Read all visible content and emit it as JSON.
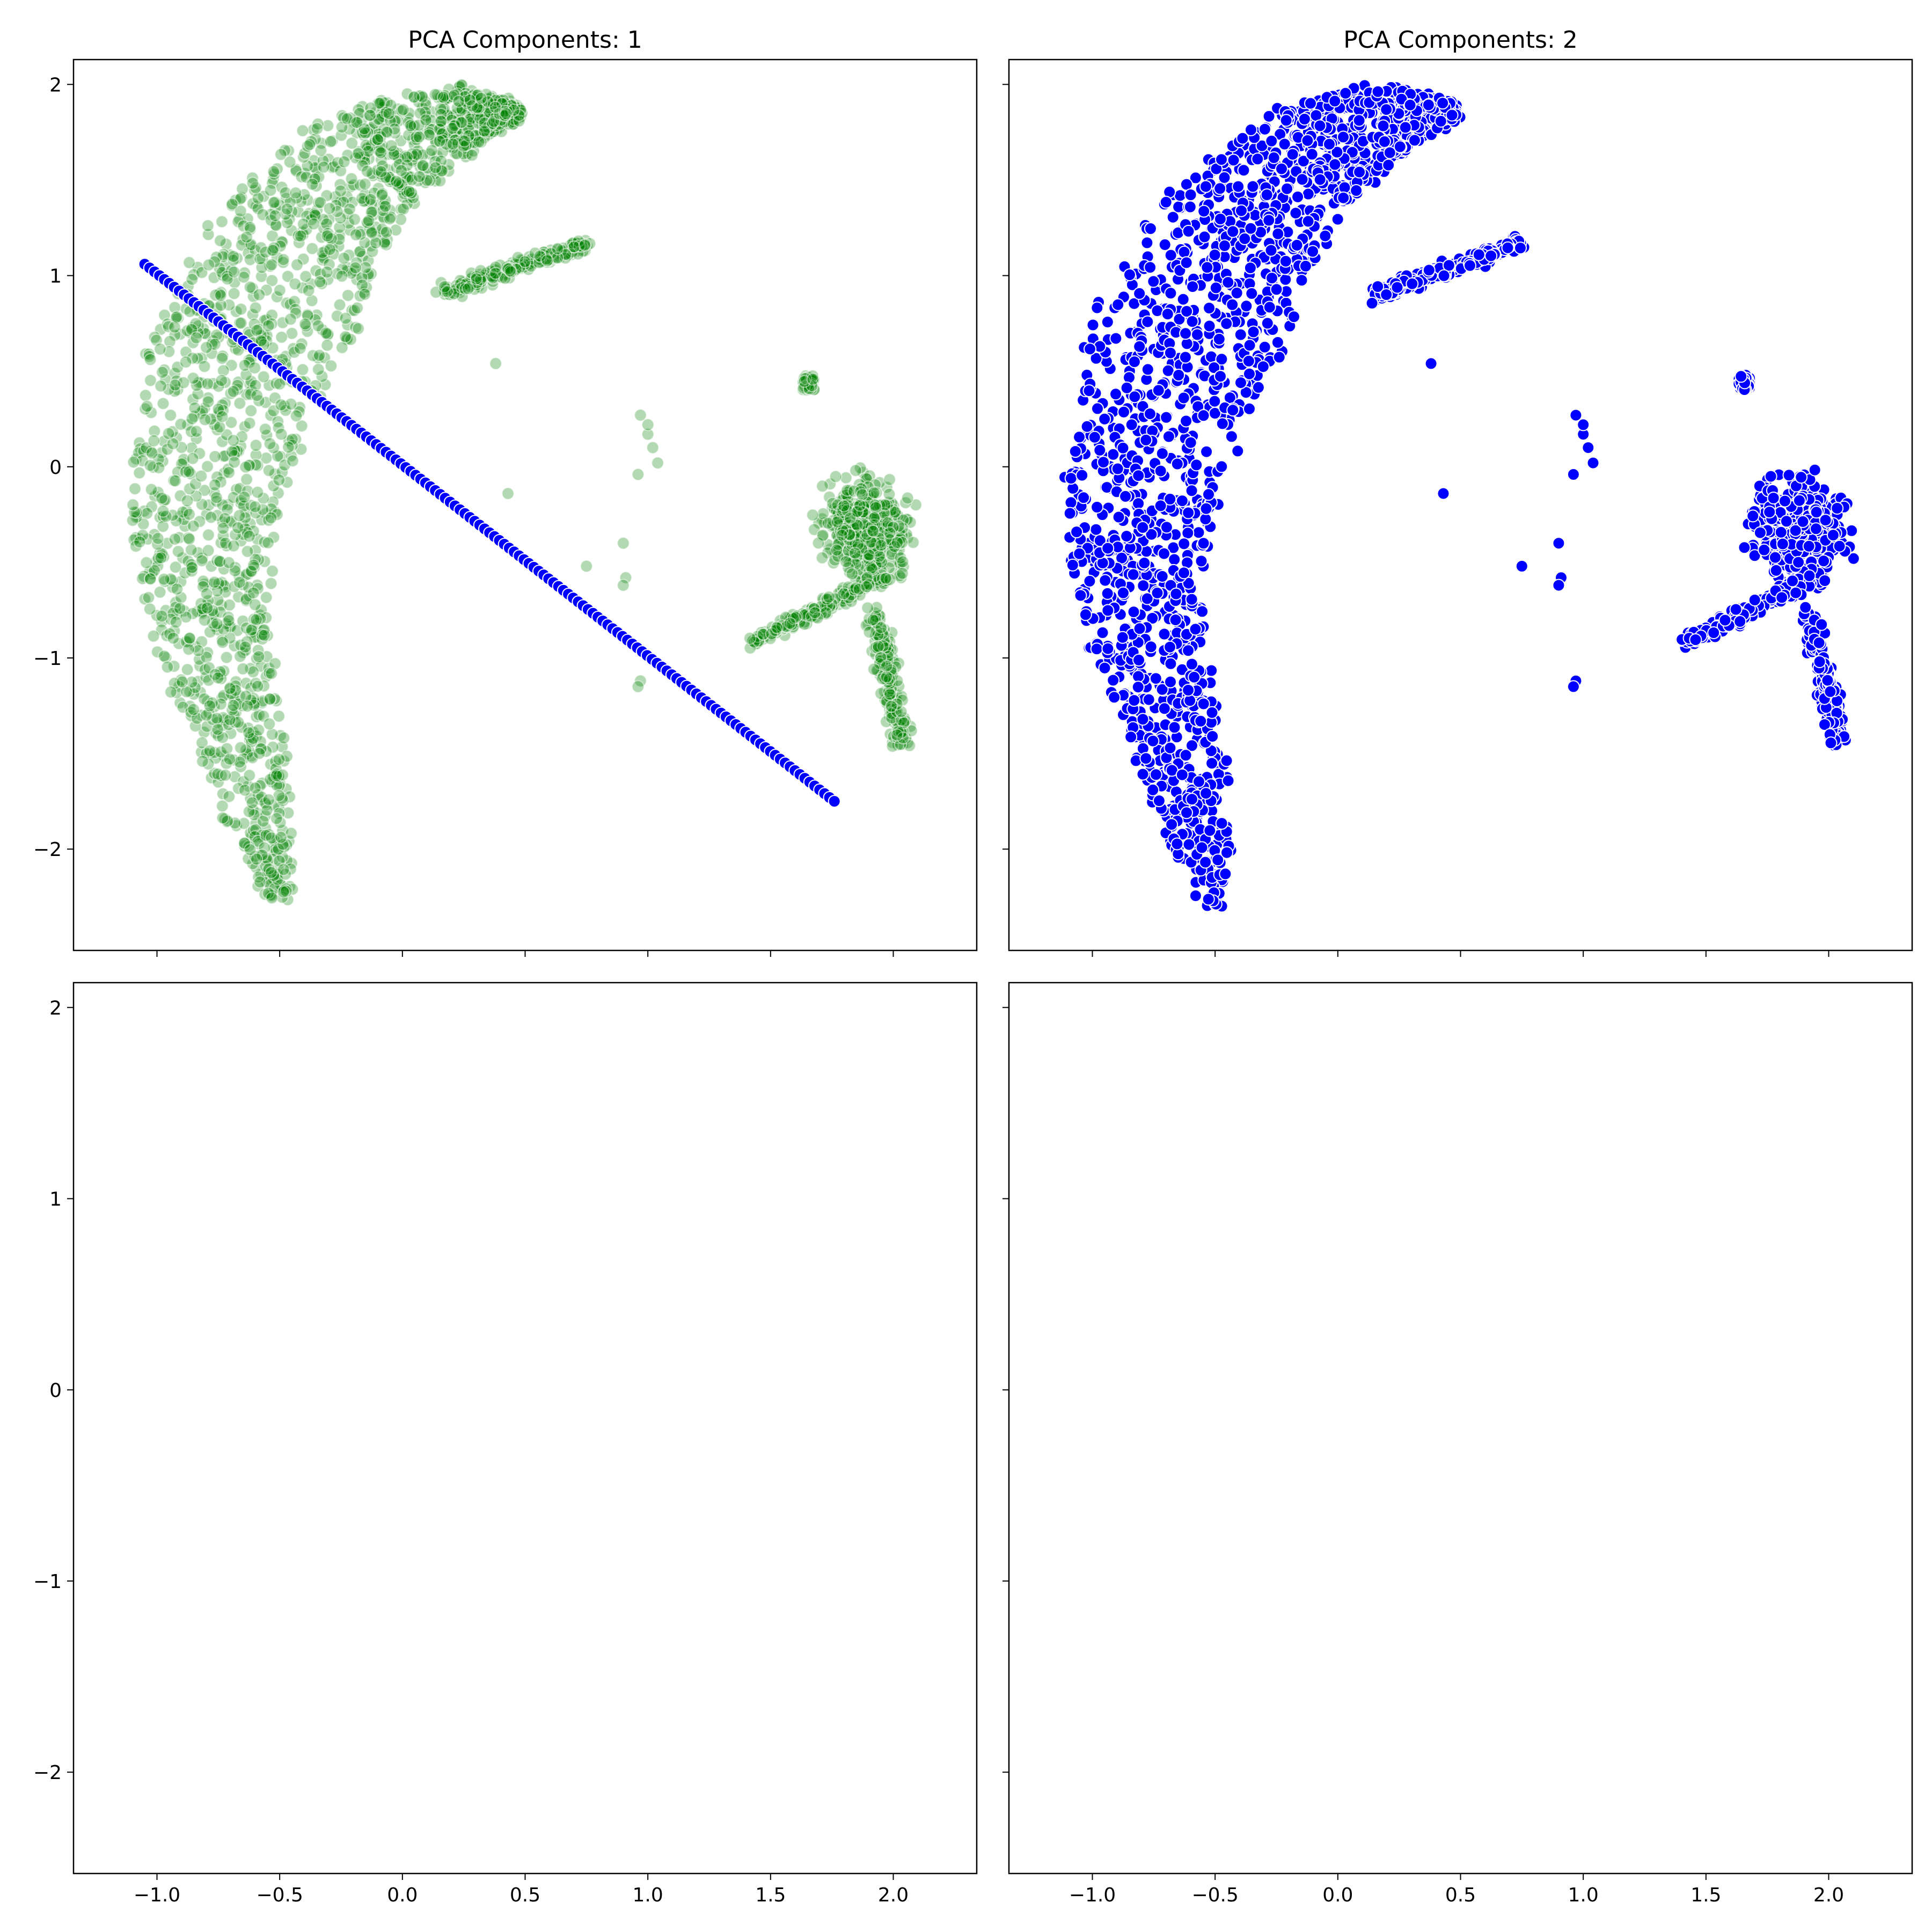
{
  "chart_data": [
    {
      "type": "scatter",
      "title": "PCA Components: 1",
      "xlim": [
        -1.34,
        2.34
      ],
      "ylim": [
        -2.53,
        2.13
      ],
      "x_ticks": [
        -1.0,
        -0.5,
        0.0,
        0.5,
        1.0,
        1.5,
        2.0
      ],
      "y_ticks": [
        -2,
        -1,
        0,
        1,
        2
      ],
      "x_tick_labels": [
        "−1.0",
        "−0.5",
        "0.0",
        "0.5",
        "1.0",
        "1.5",
        "2.0"
      ],
      "y_tick_labels": [
        "−2",
        "−1",
        "0",
        "1",
        "2"
      ],
      "show_x_tick_labels": false,
      "show_y_tick_labels": true,
      "grid": false,
      "series": [
        {
          "color": "#008000",
          "alpha": 0.3,
          "marker_edge": "#ffffff",
          "description": "original data cloud",
          "clusters": [
            {
              "shape": "crescent",
              "x_range": [
                -1.2,
                0.75
              ],
              "y_range": [
                -2.31,
                1.91
              ]
            },
            {
              "shape": "blob",
              "x_range": [
                1.4,
                2.2
              ],
              "y_range": [
                -1.48,
                0.48
              ]
            },
            {
              "shape": "sparse",
              "x_range": [
                0.4,
                1.05
              ],
              "y_range": [
                -1.16,
                0.54
              ]
            }
          ]
        },
        {
          "color": "#0000ff",
          "alpha": 1.0,
          "marker_edge": "#ffffff",
          "description": "1-component reconstruction (line)",
          "line": {
            "x_start": -1.05,
            "y_start": 1.06,
            "x_end": 1.76,
            "y_end": -1.75
          }
        }
      ]
    },
    {
      "type": "scatter",
      "title": "PCA Components: 2",
      "xlim": [
        -1.34,
        2.34
      ],
      "ylim": [
        -2.53,
        2.13
      ],
      "x_ticks": [
        -1.0,
        -0.5,
        0.0,
        0.5,
        1.0,
        1.5,
        2.0
      ],
      "y_ticks": [
        -2,
        -1,
        0,
        1,
        2
      ],
      "x_tick_labels": [
        "−1.0",
        "−0.5",
        "0.0",
        "0.5",
        "1.0",
        "1.5",
        "2.0"
      ],
      "y_tick_labels": [
        "−2",
        "−1",
        "0",
        "1",
        "2"
      ],
      "show_x_tick_labels": false,
      "show_y_tick_labels": false,
      "grid": false,
      "series": [
        {
          "color": "#0000ff",
          "alpha": 1.0,
          "marker_edge": "#ffffff",
          "description": "2-component reconstruction (full cloud)",
          "clusters": [
            {
              "shape": "crescent",
              "x_range": [
                -1.2,
                0.75
              ],
              "y_range": [
                -2.31,
                1.91
              ]
            },
            {
              "shape": "blob",
              "x_range": [
                1.4,
                2.2
              ],
              "y_range": [
                -1.48,
                0.48
              ]
            },
            {
              "shape": "sparse",
              "x_range": [
                0.4,
                1.05
              ],
              "y_range": [
                -1.16,
                0.54
              ]
            }
          ]
        }
      ]
    },
    {
      "type": "scatter",
      "title": "",
      "xlim": [
        -1.34,
        2.34
      ],
      "ylim": [
        -2.53,
        2.13
      ],
      "x_ticks": [
        -1.0,
        -0.5,
        0.0,
        0.5,
        1.0,
        1.5,
        2.0
      ],
      "y_ticks": [
        -2,
        -1,
        0,
        1,
        2
      ],
      "x_tick_labels": [
        "−1.0",
        "−0.5",
        "0.0",
        "0.5",
        "1.0",
        "1.5",
        "2.0"
      ],
      "y_tick_labels": [
        "−2",
        "−1",
        "0",
        "1",
        "2"
      ],
      "show_x_tick_labels": true,
      "show_y_tick_labels": true,
      "grid": false,
      "series": []
    },
    {
      "type": "scatter",
      "title": "",
      "xlim": [
        -1.34,
        2.34
      ],
      "ylim": [
        -2.53,
        2.13
      ],
      "x_ticks": [
        -1.0,
        -0.5,
        0.0,
        0.5,
        1.0,
        1.5,
        2.0
      ],
      "y_ticks": [
        -2,
        -1,
        0,
        1,
        2
      ],
      "x_tick_labels": [
        "−1.0",
        "−0.5",
        "0.0",
        "0.5",
        "1.0",
        "1.5",
        "2.0"
      ],
      "y_tick_labels": [
        "−2",
        "−1",
        "0",
        "1",
        "2"
      ],
      "show_x_tick_labels": true,
      "show_y_tick_labels": false,
      "grid": false,
      "series": []
    }
  ]
}
